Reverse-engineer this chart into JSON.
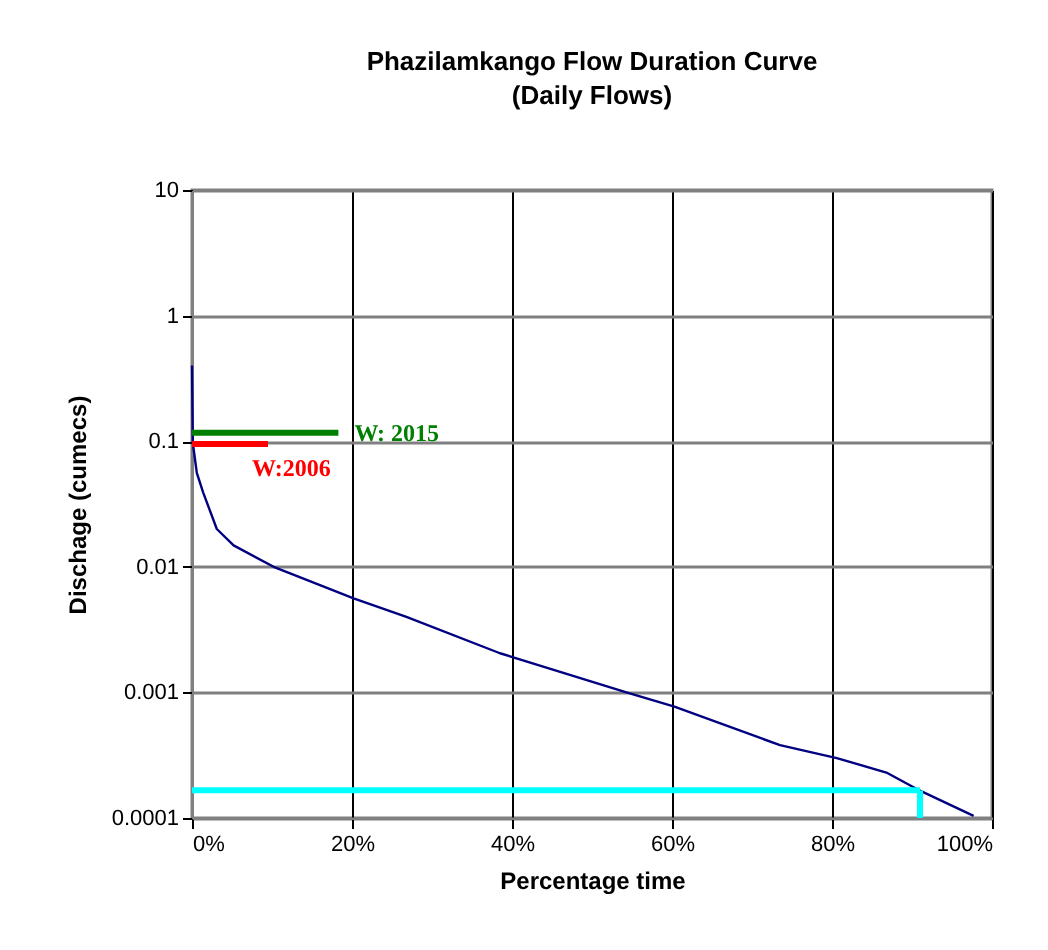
{
  "chart_data": {
    "type": "line",
    "title": "Phazilamkango Flow Duration Curve",
    "subtitle": "(Daily Flows)",
    "xlabel": "Percentage time",
    "ylabel": "Dischage (cumecs)",
    "log": "y",
    "grid": true,
    "legend": false,
    "marker": "none",
    "line_style": "solid",
    "xlim": [
      0,
      100
    ],
    "xticks": [
      {
        "value": 0,
        "label": "0%"
      },
      {
        "value": 20,
        "label": "20%"
      },
      {
        "value": 40,
        "label": "40%"
      },
      {
        "value": 60,
        "label": "60%"
      },
      {
        "value": 80,
        "label": "80%"
      },
      {
        "value": 100,
        "label": "100%"
      }
    ],
    "ylim": [
      0.0001,
      10
    ],
    "yticks": [
      0.0001,
      0.001,
      0.01,
      0.1,
      1,
      10
    ],
    "series": [
      {
        "color": "#000080",
        "x": [
          0,
          0.1,
          0.6,
          1.4,
          3.1,
          5.2,
          10.2,
          20.2,
          26.8,
          38.5,
          54.3,
          60.3,
          73.5,
          80.6,
          86.8,
          91,
          97.7
        ],
        "values": [
          0.4,
          0.097,
          0.056,
          0.039,
          0.02,
          0.0148,
          0.01,
          0.0056,
          0.004,
          0.00205,
          0.001,
          0.00077,
          0.00038,
          0.0003,
          0.00023,
          0.000165,
          0.000104
        ]
      },
      {
        "name": "W: 2015",
        "color": "#008000",
        "x": [
          0,
          18.3
        ],
        "values": [
          0.117,
          0.117
        ]
      },
      {
        "name": "W:2006",
        "color": "#ff0000",
        "x": [
          0,
          9.5
        ],
        "values": [
          0.095,
          0.095
        ]
      },
      {
        "color": "#00ffff",
        "x": [
          0,
          91
        ],
        "values": [
          0.000166,
          0.000166
        ]
      },
      {
        "color": "#00ffff",
        "x": [
          91,
          91
        ],
        "values": [
          0.000166,
          0.0001
        ]
      }
    ]
  }
}
